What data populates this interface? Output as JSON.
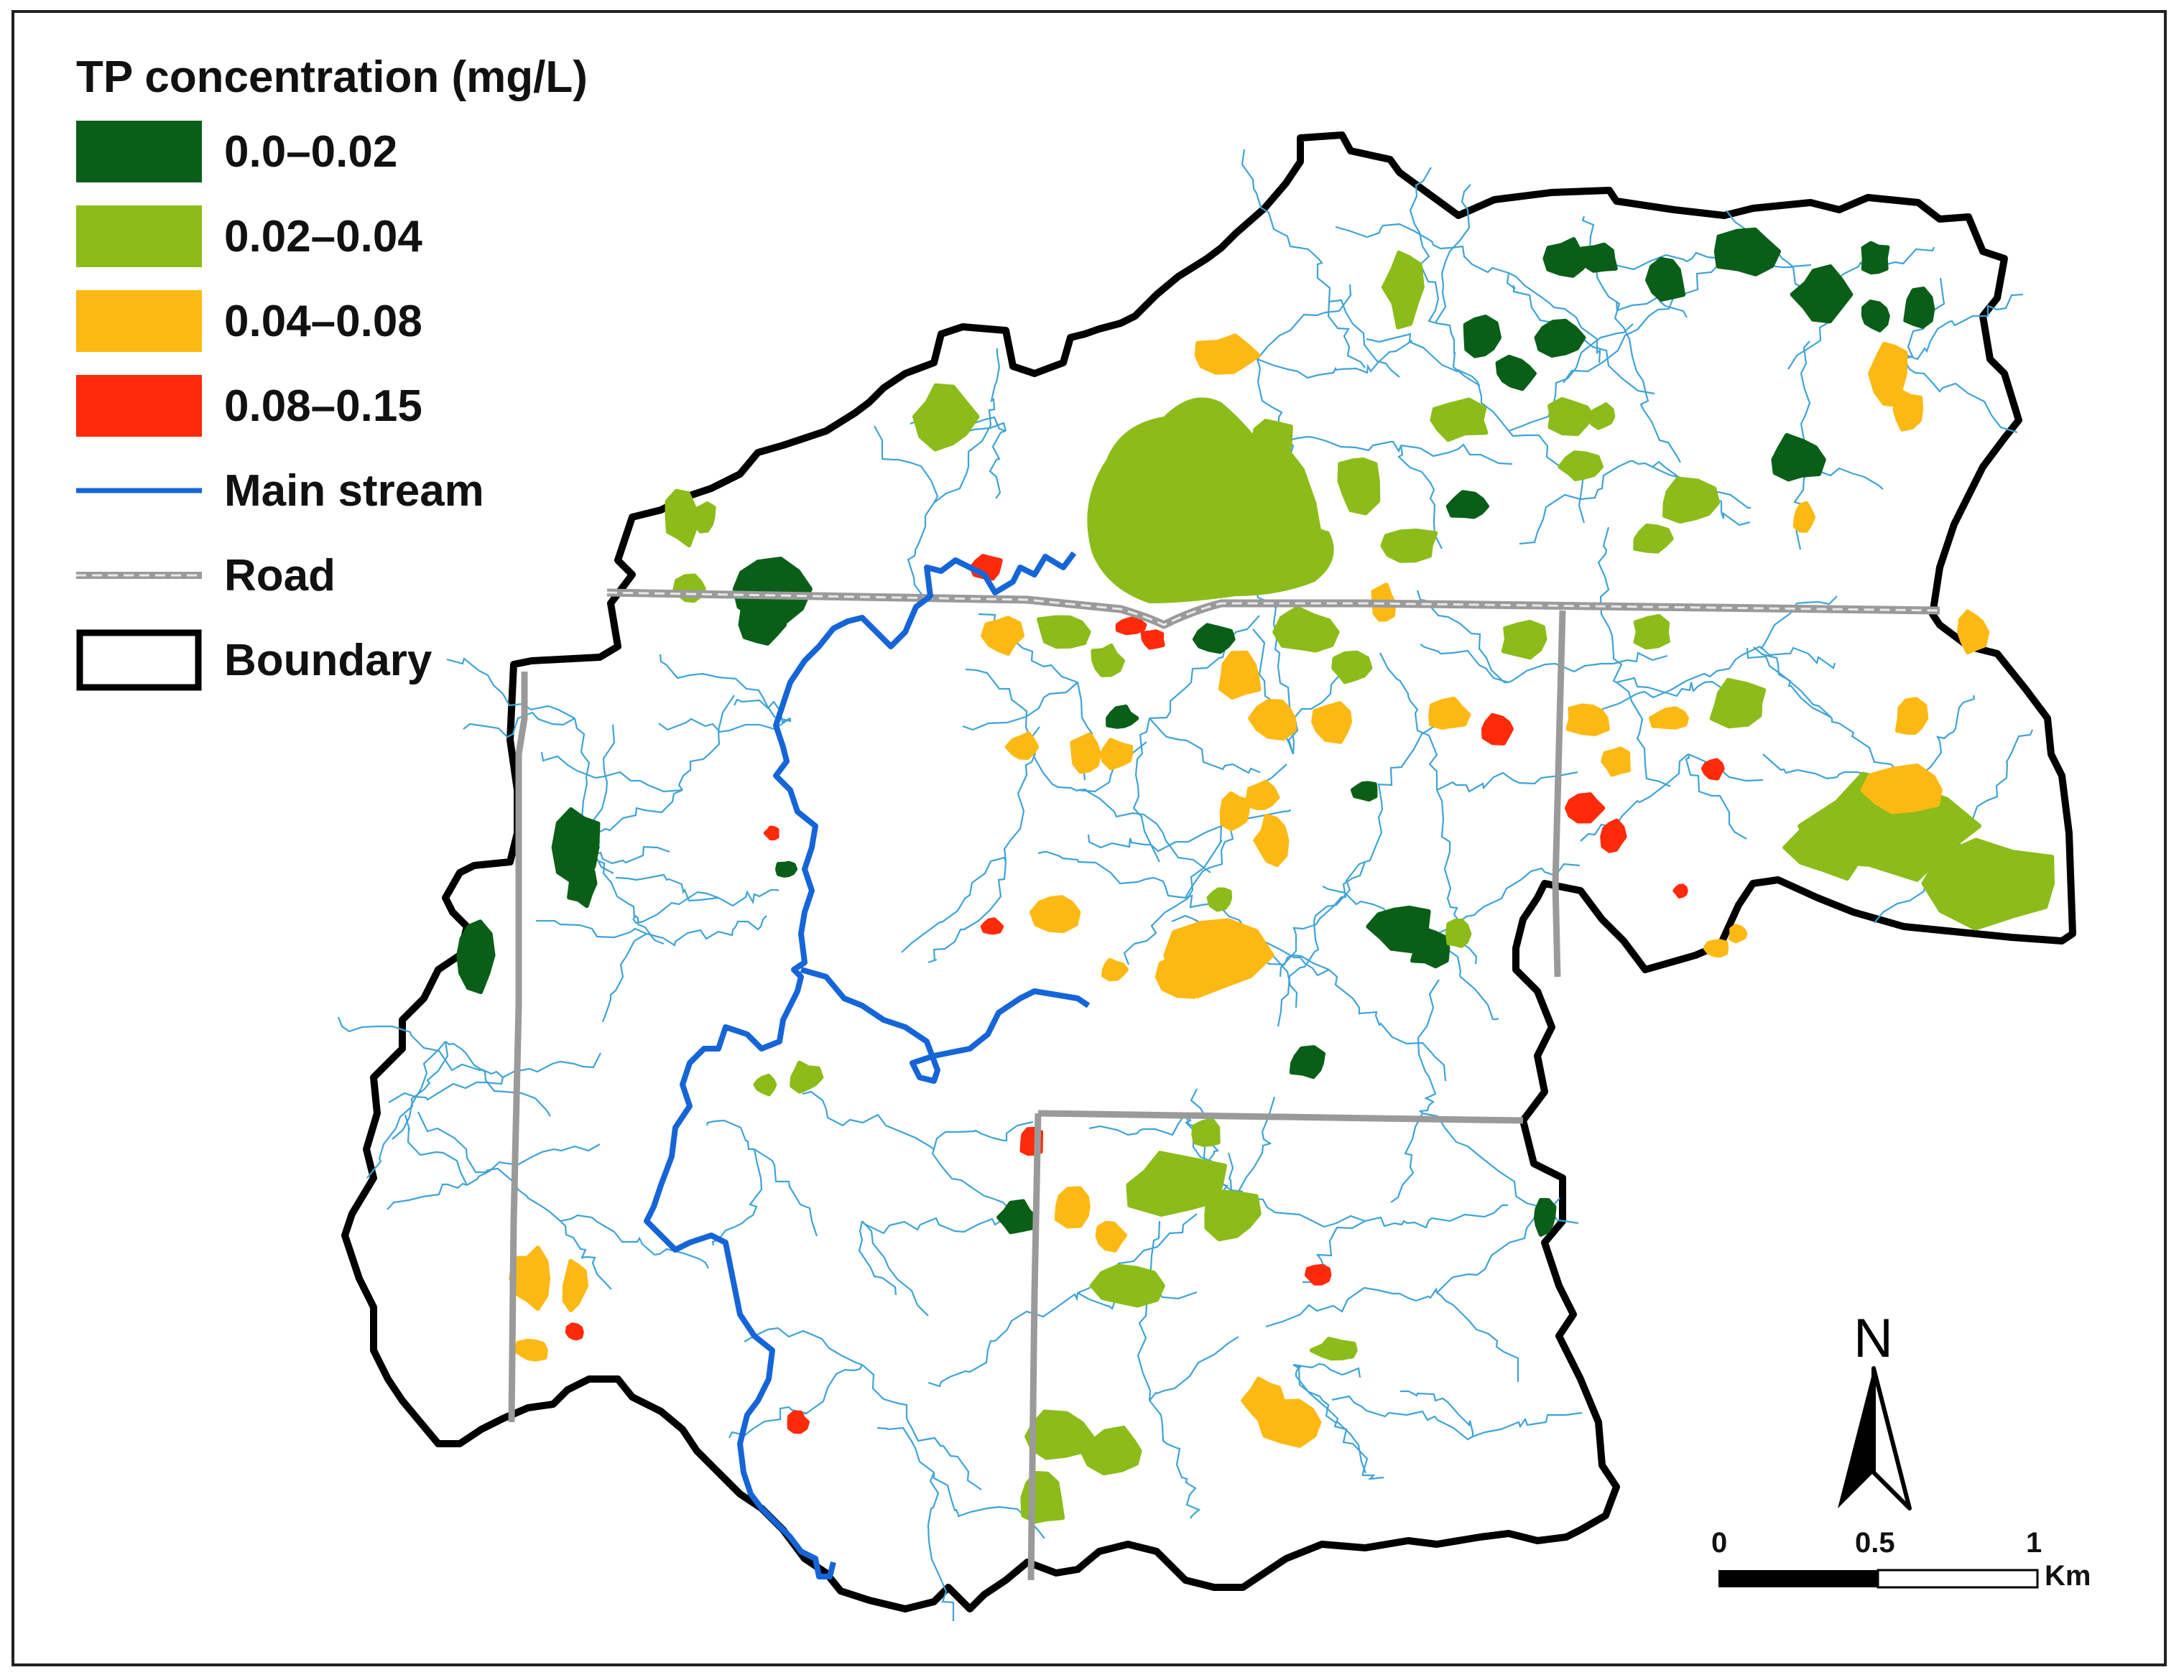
{
  "legend": {
    "title": "TP concentration (mg/L)",
    "classes": [
      {
        "label": "0.0–0.02",
        "color": "#0a5f18"
      },
      {
        "label": "0.02–0.04",
        "color": "#8cbc1a"
      },
      {
        "label": "0.04–0.08",
        "color": "#fdb913"
      },
      {
        "label": "0.08–0.15",
        "color": "#ff2a0a"
      }
    ],
    "main_stream_label": "Main stream",
    "road_label": "Road",
    "boundary_label": "Boundary"
  },
  "colors": {
    "main_stream": "#1565d8",
    "tributary": "#3fa3d6",
    "road": "#9a9a9a",
    "boundary": "#000000"
  },
  "north_arrow": {
    "label": "N"
  },
  "scale_bar": {
    "ticks": [
      "0",
      "0.5",
      "1"
    ],
    "unit": "Km"
  }
}
